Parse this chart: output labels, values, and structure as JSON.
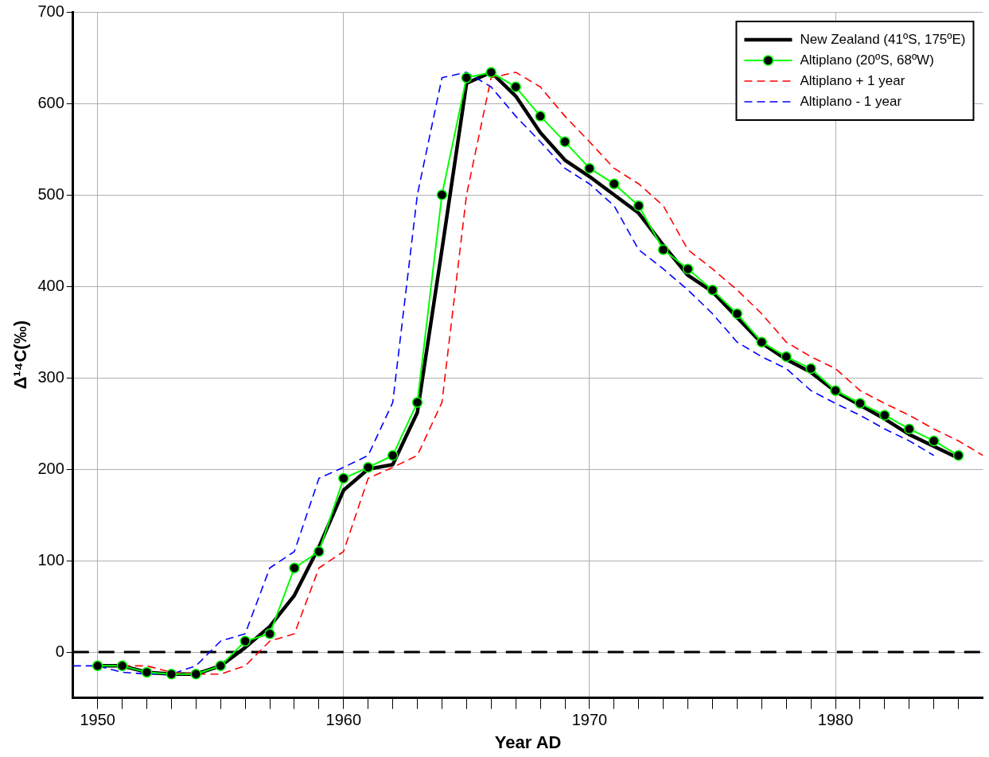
{
  "chart_data": {
    "type": "line",
    "xlabel": "Year AD",
    "ylabel": "Δ¹⁴C(‰)",
    "xlim": [
      1949,
      1986
    ],
    "ylim": [
      -50,
      700
    ],
    "xticks": [
      1950,
      {
        "value": 1951,
        "label": null
      },
      {
        "value": 1952,
        "label": null
      },
      {
        "value": 1953,
        "label": null
      },
      {
        "value": 1954,
        "label": null
      },
      {
        "value": 1955,
        "label": null
      },
      {
        "value": 1956,
        "label": null
      },
      {
        "value": 1957,
        "label": null
      },
      {
        "value": 1958,
        "label": null
      },
      {
        "value": 1959,
        "label": null
      },
      1960,
      {
        "value": 1961,
        "label": null
      },
      {
        "value": 1962,
        "label": null
      },
      {
        "value": 1963,
        "label": null
      },
      {
        "value": 1964,
        "label": null
      },
      {
        "value": 1965,
        "label": null
      },
      {
        "value": 1966,
        "label": null
      },
      {
        "value": 1967,
        "label": null
      },
      {
        "value": 1968,
        "label": null
      },
      {
        "value": 1969,
        "label": null
      },
      1970,
      {
        "value": 1971,
        "label": null
      },
      {
        "value": 1972,
        "label": null
      },
      {
        "value": 1973,
        "label": null
      },
      {
        "value": 1974,
        "label": null
      },
      {
        "value": 1975,
        "label": null
      },
      {
        "value": 1976,
        "label": null
      },
      {
        "value": 1977,
        "label": null
      },
      {
        "value": 1978,
        "label": null
      },
      {
        "value": 1979,
        "label": null
      },
      1980,
      {
        "value": 1981,
        "label": null
      },
      {
        "value": 1982,
        "label": null
      },
      {
        "value": 1983,
        "label": null
      },
      {
        "value": 1984,
        "label": null
      },
      {
        "value": 1985,
        "label": null
      }
    ],
    "yticks": [
      0,
      100,
      200,
      300,
      400,
      500,
      600,
      700
    ],
    "grid": true,
    "legend": "top right",
    "ref_lines": [
      {
        "axis": "y",
        "value": 0,
        "color": "#000000",
        "line_style": "dashed"
      }
    ],
    "series": [
      {
        "name": "New Zealand (41ºS, 175ºE)",
        "color": "#000000",
        "marker": "none",
        "line_style": "solid",
        "x": [
          1950,
          1951,
          1952,
          1953,
          1954,
          1955,
          1956,
          1957,
          1958,
          1959,
          1960,
          1961,
          1962,
          1963,
          1964,
          1965,
          1966,
          1967,
          1968,
          1969,
          1970,
          1971,
          1972,
          1973,
          1974,
          1975,
          1976,
          1977,
          1978,
          1979,
          1980,
          1981,
          1982,
          1983,
          1984,
          1985
        ],
        "values": [
          -15,
          -15,
          -22,
          -24,
          -24,
          -15,
          5,
          28,
          62,
          115,
          177,
          200,
          205,
          262,
          440,
          622,
          634,
          608,
          568,
          538,
          520,
          500,
          480,
          445,
          412,
          394,
          366,
          338,
          320,
          306,
          285,
          270,
          255,
          238,
          225,
          212
        ]
      },
      {
        "name": "Altiplano (20ºS, 68ºW)",
        "color": "#00ff00",
        "marker": "circle",
        "line_style": "solid",
        "x": [
          1950,
          1951,
          1952,
          1953,
          1954,
          1955,
          1956,
          1957,
          1958,
          1959,
          1960,
          1961,
          1962,
          1963,
          1964,
          1965,
          1966,
          1967,
          1968,
          1969,
          1970,
          1971,
          1972,
          1973,
          1974,
          1975,
          1976,
          1977,
          1978,
          1979,
          1980,
          1981,
          1982,
          1983,
          1984,
          1985
        ],
        "values": [
          -15,
          -15,
          -22,
          -24,
          -24,
          -15,
          12,
          20,
          92,
          110,
          190,
          202,
          215,
          273,
          500,
          628,
          634,
          618,
          586,
          558,
          529,
          512,
          488,
          440,
          419,
          396,
          370,
          339,
          323,
          310,
          286,
          272,
          259,
          244,
          231,
          215
        ]
      },
      {
        "name": "Altiplano + 1 year",
        "color": "#ff0000",
        "marker": "none",
        "line_style": "dashed",
        "x": [
          1951,
          1952,
          1953,
          1954,
          1955,
          1956,
          1957,
          1958,
          1959,
          1960,
          1961,
          1962,
          1963,
          1964,
          1965,
          1966,
          1967,
          1968,
          1969,
          1970,
          1971,
          1972,
          1973,
          1974,
          1975,
          1976,
          1977,
          1978,
          1979,
          1980,
          1981,
          1982,
          1983,
          1984,
          1985,
          1986
        ],
        "values": [
          -15,
          -15,
          -22,
          -24,
          -24,
          -15,
          12,
          20,
          92,
          110,
          190,
          202,
          215,
          273,
          500,
          628,
          634,
          618,
          586,
          558,
          529,
          512,
          488,
          440,
          419,
          396,
          370,
          339,
          323,
          310,
          286,
          272,
          259,
          244,
          231,
          215
        ]
      },
      {
        "name": "Altiplano - 1 year",
        "color": "#0000ff",
        "marker": "none",
        "line_style": "dashed",
        "x": [
          1949,
          1950,
          1951,
          1952,
          1953,
          1954,
          1955,
          1956,
          1957,
          1958,
          1959,
          1960,
          1961,
          1962,
          1963,
          1964,
          1965,
          1966,
          1967,
          1968,
          1969,
          1970,
          1971,
          1972,
          1973,
          1974,
          1975,
          1976,
          1977,
          1978,
          1979,
          1980,
          1981,
          1982,
          1983,
          1984
        ],
        "values": [
          -15,
          -15,
          -22,
          -24,
          -24,
          -15,
          12,
          20,
          92,
          110,
          190,
          202,
          215,
          273,
          500,
          628,
          634,
          618,
          586,
          558,
          529,
          512,
          488,
          440,
          419,
          396,
          370,
          339,
          323,
          310,
          286,
          272,
          259,
          244,
          231,
          215
        ]
      }
    ]
  }
}
